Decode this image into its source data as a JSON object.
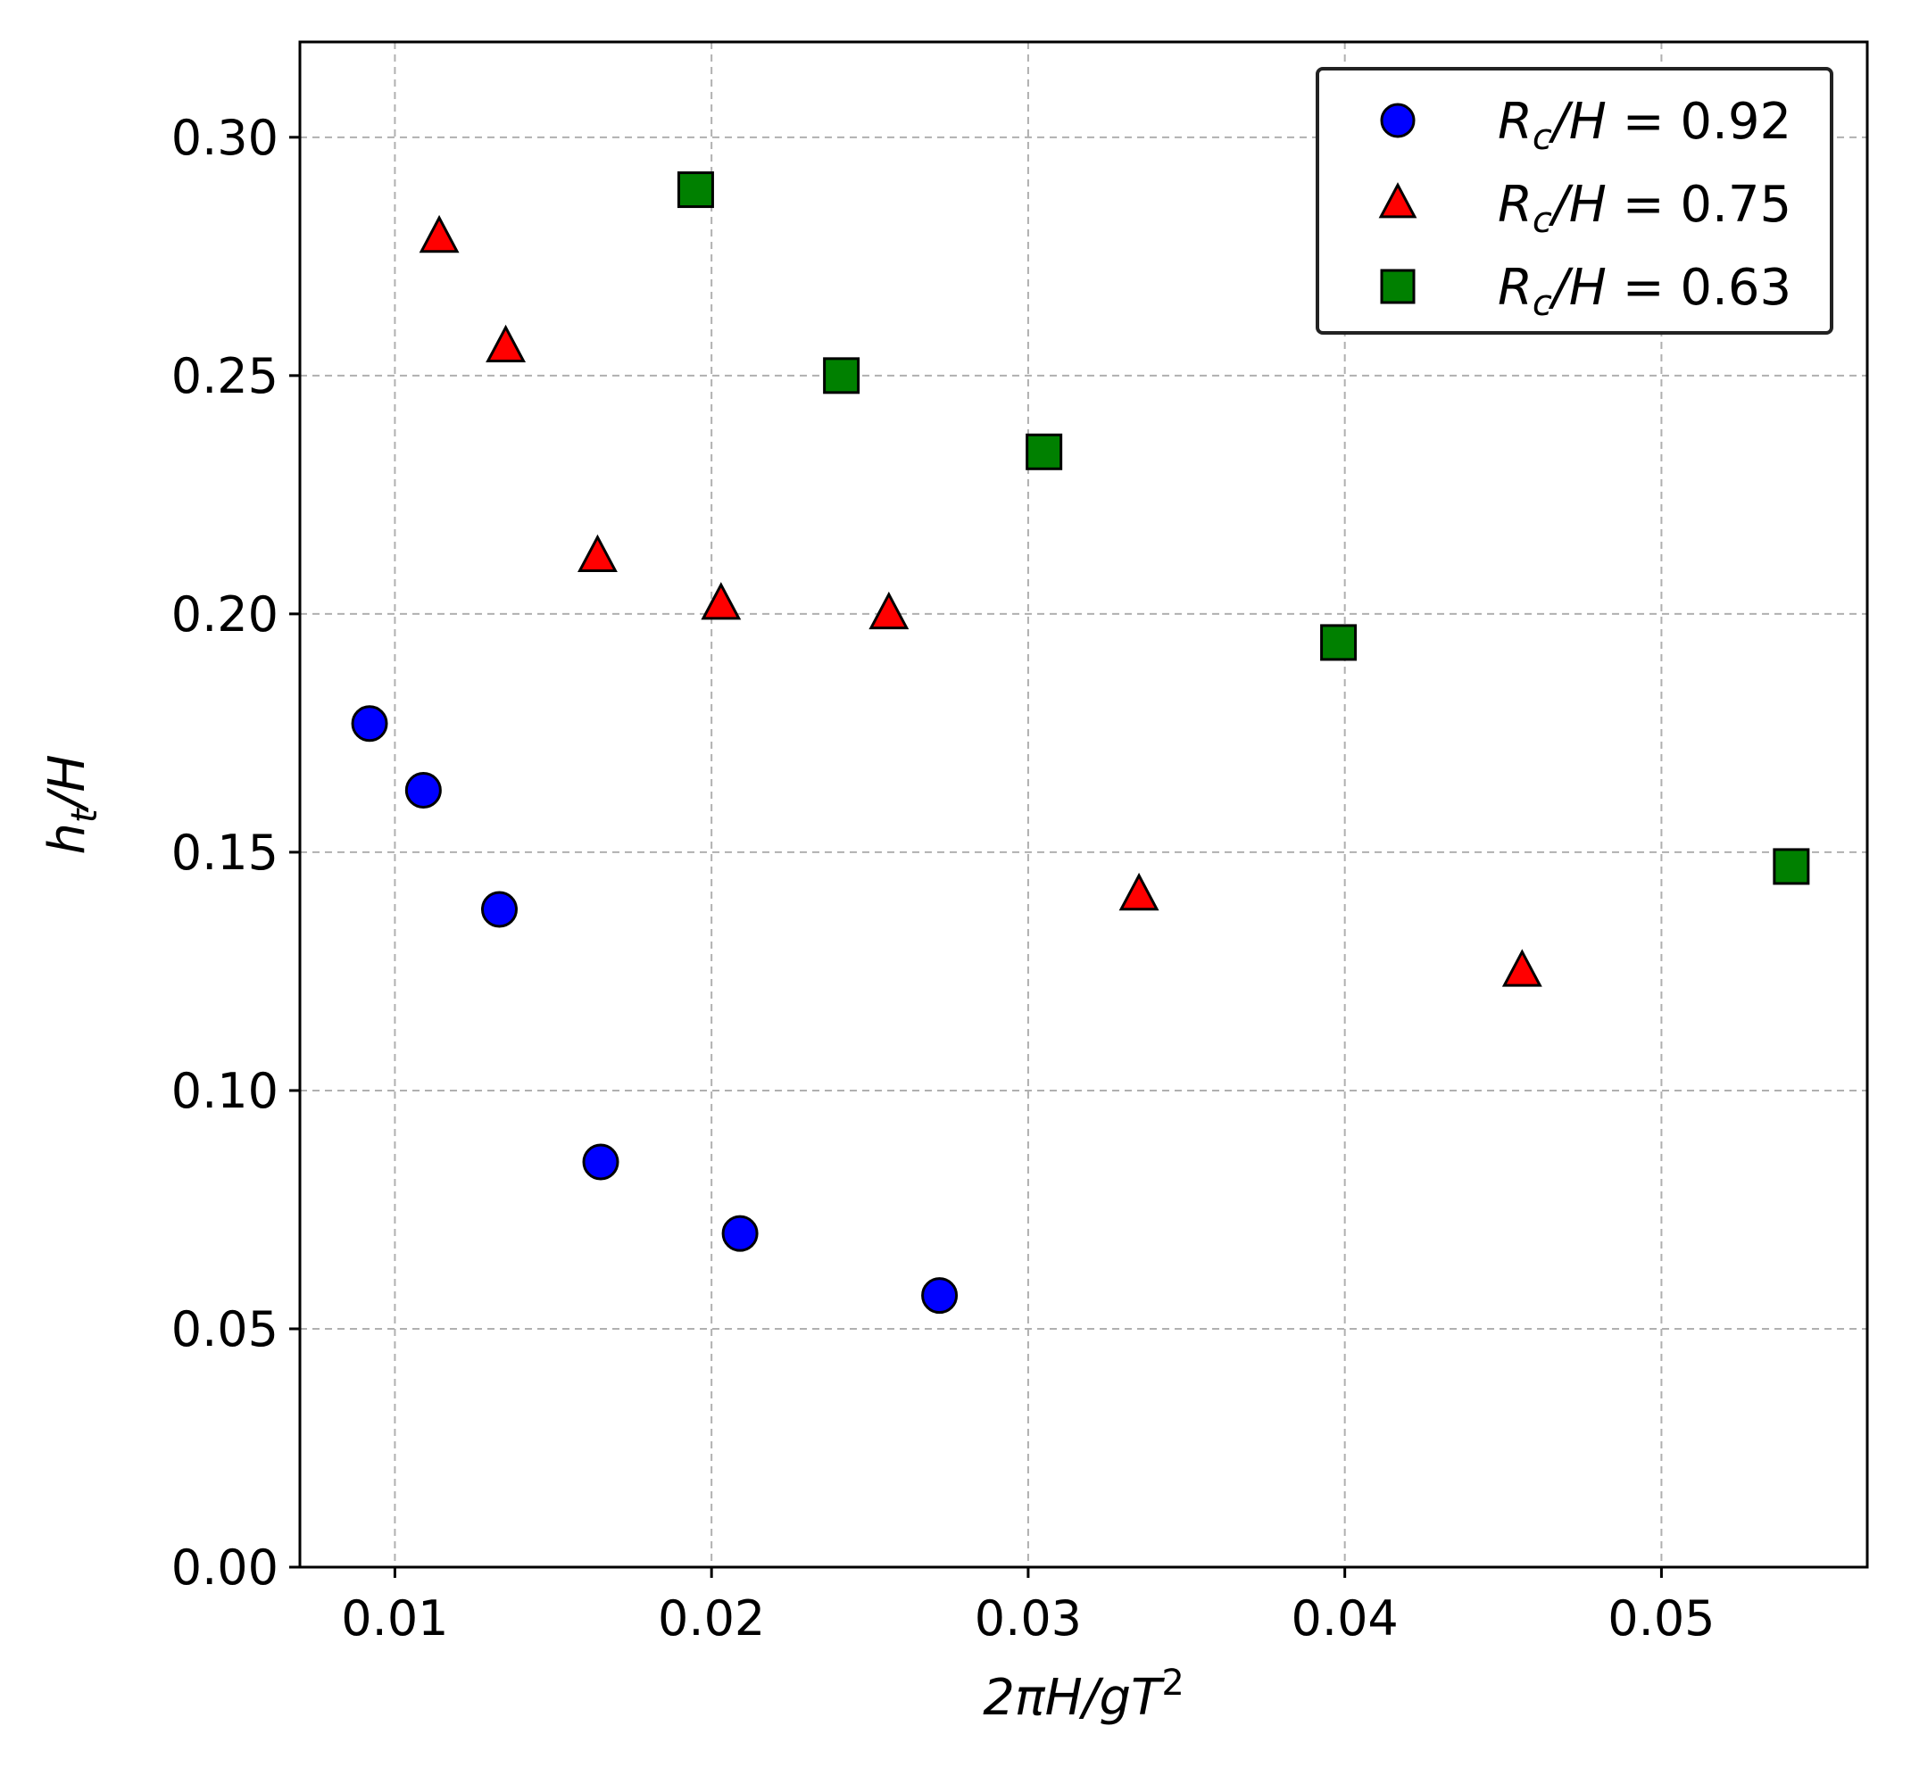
{
  "chart_data": {
    "type": "scatter",
    "title": "",
    "xlabel": "2πH/gT²",
    "ylabel": "h_t/H",
    "xlim": [
      0.007,
      0.0565
    ],
    "ylim": [
      0.0,
      0.32
    ],
    "grid": true,
    "legend_position": "top-right",
    "x_ticks": [
      0.01,
      0.02,
      0.03,
      0.04,
      0.05
    ],
    "x_tick_labels": [
      "0.01",
      "0.02",
      "0.03",
      "0.04",
      "0.05"
    ],
    "y_ticks": [
      0.0,
      0.05,
      0.1,
      0.15,
      0.2,
      0.25,
      0.3
    ],
    "y_tick_labels": [
      "0.00",
      "0.05",
      "0.10",
      "0.15",
      "0.20",
      "0.25",
      "0.30"
    ],
    "series": [
      {
        "name": "Rc/H = 0.92",
        "legend_prefix": "R",
        "legend_sub": "c",
        "legend_rest": "/H = 0.92",
        "marker": "circle",
        "color": "#0000ff",
        "x": [
          0.0092,
          0.0109,
          0.0133,
          0.0165,
          0.0209,
          0.0272
        ],
        "y": [
          0.177,
          0.163,
          0.138,
          0.085,
          0.07,
          0.057
        ]
      },
      {
        "name": "Rc/H = 0.75",
        "legend_prefix": "R",
        "legend_sub": "c",
        "legend_rest": "/H = 0.75",
        "marker": "triangle",
        "color": "#ff0000",
        "x": [
          0.0114,
          0.0135,
          0.0164,
          0.0203,
          0.0256,
          0.0335,
          0.0456
        ],
        "y": [
          0.279,
          0.256,
          0.212,
          0.202,
          0.2,
          0.141,
          0.125
        ]
      },
      {
        "name": "Rc/H = 0.63",
        "legend_prefix": "R",
        "legend_sub": "c",
        "legend_rest": "/H = 0.63",
        "marker": "square",
        "color": "#008000",
        "x": [
          0.0195,
          0.0241,
          0.0305,
          0.0398,
          0.0541
        ],
        "y": [
          0.289,
          0.25,
          0.234,
          0.194,
          0.147
        ]
      }
    ]
  }
}
